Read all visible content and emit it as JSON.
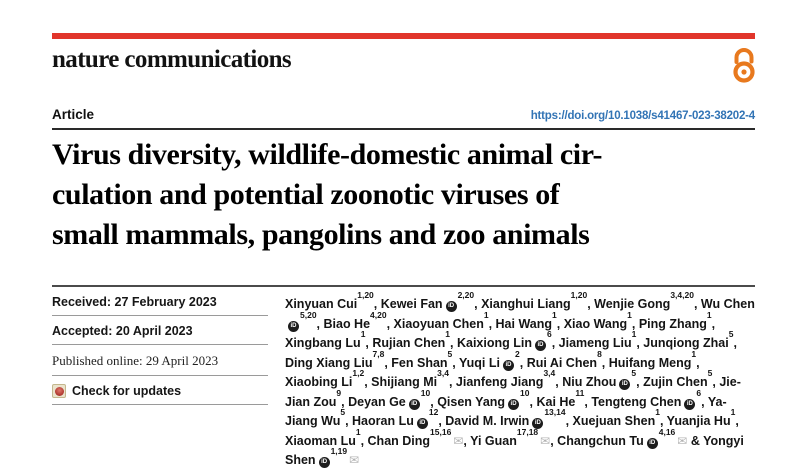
{
  "brand": {
    "wordmark": "nature communications",
    "accent_red": "#E1352B",
    "open_access_orange": "#E8791E"
  },
  "article": {
    "kicker": "Article",
    "doi_url": "https://doi.org/10.1038/s41467-023-38202-4",
    "link_color": "#3274B5",
    "title_lines": [
      "Virus diversity, wildlife-domestic animal cir-",
      "culation and potential zoonotic viruses of",
      "small mammals, pangolins and zoo animals"
    ]
  },
  "sidebar": {
    "received": "Received: 27 February 2023",
    "accepted": "Accepted: 20 April 2023",
    "published": "Published online: 29 April 2023",
    "check_updates": "Check for updates"
  },
  "icons": {
    "orcid_glyph": "iD",
    "email_glyph": "✉",
    "open_access": "open-access-lock",
    "crossmark": "crossmark-badge"
  },
  "authors": {
    "separator": ", ",
    "ampersand": "&",
    "items": [
      {
        "name": "Xinyuan Cui",
        "sup": "1,20"
      },
      {
        "name": "Kewei Fan",
        "orcid": true,
        "sup": "2,20"
      },
      {
        "name": "Xianghui Liang",
        "sup": "1,20"
      },
      {
        "name": "Wenjie Gong",
        "sup": "3,4,20"
      },
      {
        "name": "Wu Chen",
        "orcid": true,
        "sup": "5,20"
      },
      {
        "name": "Biao He",
        "sup": "4,20"
      },
      {
        "name": "Xiaoyuan Chen",
        "sup": "1"
      },
      {
        "name": "Hai Wang",
        "sup": "1"
      },
      {
        "name": "Xiao Wang",
        "sup": "1"
      },
      {
        "name": "Ping Zhang",
        "sup": "1"
      },
      {
        "name": "Xingbang Lu",
        "sup": "1"
      },
      {
        "name": "Rujian Chen",
        "sup": "1"
      },
      {
        "name": "Kaixiong Lin",
        "orcid": true,
        "sup": "6"
      },
      {
        "name": "Jiameng Liu",
        "sup": "1"
      },
      {
        "name": "Junqiong Zhai",
        "sup": "5"
      },
      {
        "name": "Ding Xiang Liu",
        "sup": "7,8"
      },
      {
        "name": "Fen Shan",
        "sup": "5"
      },
      {
        "name": "Yuqi Li",
        "orcid": true,
        "sup": "2"
      },
      {
        "name": "Rui Ai Chen",
        "sup": "8"
      },
      {
        "name": "Huifang Meng",
        "sup": "1"
      },
      {
        "name": "Xiaobing Li",
        "sup": "1,2"
      },
      {
        "name": "Shijiang Mi",
        "sup": "3,4"
      },
      {
        "name": "Jianfeng Jiang",
        "sup": "3,4"
      },
      {
        "name": "Niu Zhou",
        "orcid": true,
        "sup": "5"
      },
      {
        "name": "Zujin Chen",
        "sup": "5"
      },
      {
        "name": "Jie-Jian Zou",
        "sup": "9"
      },
      {
        "name": "Deyan Ge",
        "orcid": true,
        "sup": "10"
      },
      {
        "name": "Qisen Yang",
        "orcid": true,
        "sup": "10"
      },
      {
        "name": "Kai He",
        "sup": "11"
      },
      {
        "name": "Tengteng Chen",
        "orcid": true,
        "sup": "6"
      },
      {
        "name": "Ya-Jiang Wu",
        "sup": "5"
      },
      {
        "name": "Haoran Lu",
        "orcid": true,
        "sup": "12"
      },
      {
        "name": "David M. Irwin",
        "orcid": true,
        "sup": "13,14"
      },
      {
        "name": "Xuejuan Shen",
        "sup": "1"
      },
      {
        "name": "Yuanjia Hu",
        "sup": "1"
      },
      {
        "name": "Xiaoman Lu",
        "sup": "1"
      },
      {
        "name": "Chan Ding",
        "sup": "15,16",
        "email": true
      },
      {
        "name": "Yi Guan",
        "sup": "17,18",
        "email": true
      },
      {
        "name": "Changchun Tu",
        "orcid": true,
        "sup": "4,16",
        "email": true
      },
      {
        "name": "Yongyi Shen",
        "orcid": true,
        "sup": "1,19",
        "email": true
      }
    ]
  }
}
